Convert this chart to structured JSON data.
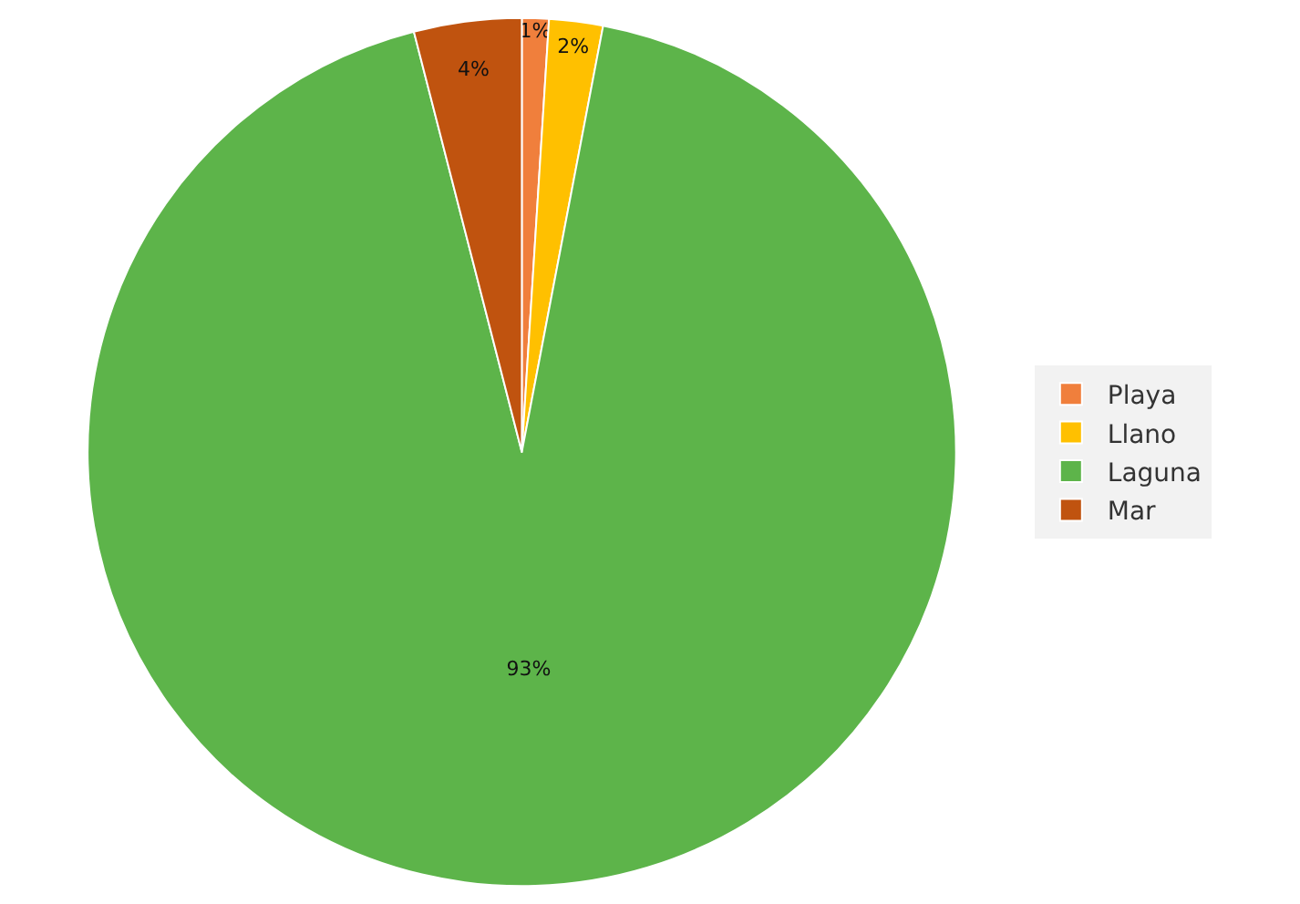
{
  "chart_data": {
    "type": "pie",
    "categories": [
      "Playa",
      "Llano",
      "Laguna",
      "Mar"
    ],
    "values": [
      1,
      2,
      93,
      4
    ],
    "value_labels": [
      "1%",
      "2%",
      "93%",
      "4%"
    ],
    "colors": [
      "#f07f3c",
      "#ffc000",
      "#5db44a",
      "#c0530f"
    ],
    "legend": "right"
  }
}
